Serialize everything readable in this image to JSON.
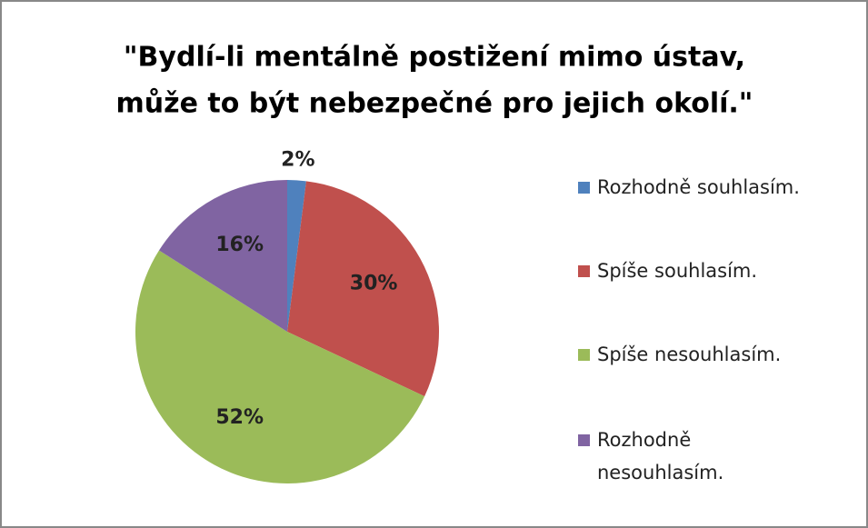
{
  "chart_data": {
    "type": "pie",
    "title": [
      "\"Bydlí-li mentálně postižení mimo ústav,",
      "může to být nebezpečné pro jejich okolí.\""
    ],
    "categories": [
      "Rozhodně souhlasím.",
      "Spíše souhlasím.",
      "Spíše nesouhlasím.",
      "Rozhodně nesouhlasím."
    ],
    "values": [
      2,
      30,
      52,
      16
    ],
    "value_labels": [
      "2%",
      "30%",
      "52%",
      "16%"
    ],
    "colors": [
      "#4f81bd",
      "#c0504d",
      "#9bbb59",
      "#8064a2"
    ],
    "legend": "right"
  }
}
